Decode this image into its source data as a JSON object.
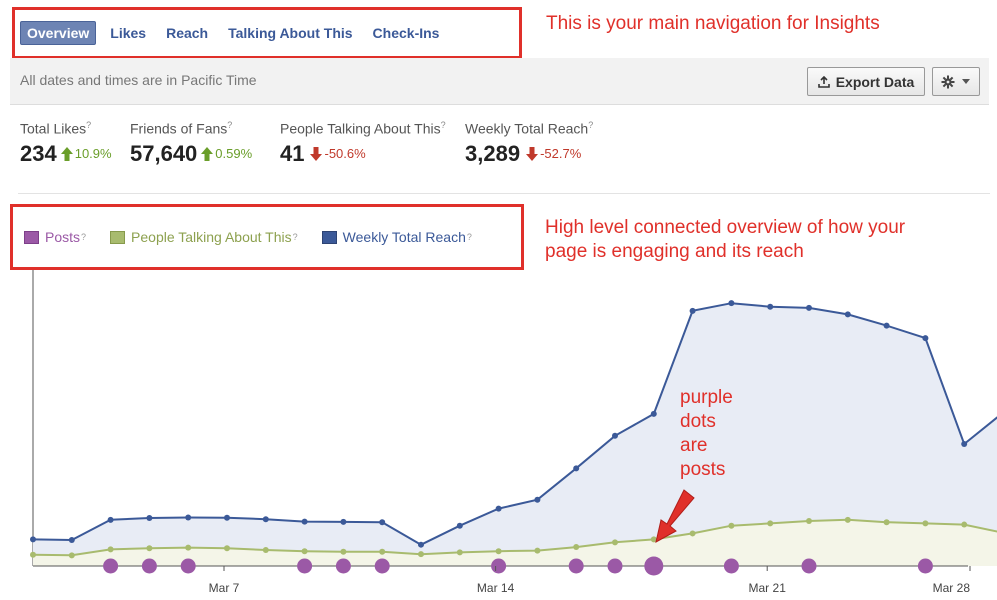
{
  "nav": {
    "tabs": [
      {
        "label": "Overview",
        "active": true
      },
      {
        "label": "Likes",
        "active": false
      },
      {
        "label": "Reach",
        "active": false
      },
      {
        "label": "Talking About This",
        "active": false
      },
      {
        "label": "Check-Ins",
        "active": false
      }
    ]
  },
  "annotations": {
    "nav_note": "This is your main navigation for Insights",
    "legend_note_line1": "High level connected overview of how your",
    "legend_note_line2": "page is engaging and its reach",
    "posts_note": [
      "purple",
      "dots",
      "are",
      "posts"
    ]
  },
  "infobar": {
    "timezone": "All dates and times are in Pacific Time",
    "export_label": "Export Data"
  },
  "stats": [
    {
      "label": "Total Likes",
      "value": "234",
      "change": "10.9%",
      "direction": "up"
    },
    {
      "label": "Friends of Fans",
      "value": "57,640",
      "change": "0.59%",
      "direction": "up"
    },
    {
      "label": "People Talking About This",
      "value": "41",
      "change": "-50.6%",
      "direction": "down"
    },
    {
      "label": "Weekly Total Reach",
      "value": "3,289",
      "change": "-52.7%",
      "direction": "down"
    }
  ],
  "legend": [
    {
      "label": "Posts",
      "color": "#9b59a6",
      "text_color": "#9b59a6"
    },
    {
      "label": "People Talking About This",
      "color": "#a8bb6e",
      "text_color": "#8da14f"
    },
    {
      "label": "Weekly Total Reach",
      "color": "#3b5998",
      "text_color": "#3b5998"
    }
  ],
  "colors": {
    "accent_red": "#e0302a",
    "reach_line": "#3b5998",
    "reach_fill": "#e8ecf5",
    "talking_line": "#a8bb6e",
    "talking_fill": "#f4f5e8",
    "posts": "#9b59a6"
  },
  "chart_data": {
    "type": "line",
    "x_ticks": [
      "Mar 7",
      "Mar 14",
      "Mar 21",
      "Mar 28"
    ],
    "x_tick_day_index": [
      5,
      12,
      19,
      26
    ],
    "day_count": 25,
    "series": [
      {
        "name": "Weekly Total Reach",
        "values": [
          450,
          440,
          780,
          810,
          820,
          815,
          790,
          750,
          745,
          740,
          360,
          680,
          970,
          1120,
          1650,
          2200,
          2570,
          4310,
          4440,
          4380,
          4360,
          4250,
          4060,
          3850,
          2060,
          2590
        ]
      },
      {
        "name": "People Talking About This",
        "values": [
          190,
          180,
          280,
          300,
          310,
          300,
          270,
          250,
          240,
          240,
          200,
          230,
          250,
          260,
          320,
          400,
          450,
          550,
          680,
          720,
          760,
          780,
          740,
          720,
          700,
          560
        ]
      }
    ],
    "posts": [
      {
        "day": 2,
        "size": 1
      },
      {
        "day": 3,
        "size": 1
      },
      {
        "day": 4,
        "size": 1
      },
      {
        "day": 7,
        "size": 1
      },
      {
        "day": 8,
        "size": 1
      },
      {
        "day": 9,
        "size": 1
      },
      {
        "day": 12,
        "size": 1
      },
      {
        "day": 14,
        "size": 1
      },
      {
        "day": 15,
        "size": 1
      },
      {
        "day": 16,
        "size": 2
      },
      {
        "day": 18,
        "size": 1
      },
      {
        "day": 20,
        "size": 1
      },
      {
        "day": 23,
        "size": 1
      }
    ],
    "ylim": [
      0,
      5000
    ],
    "grid": false
  }
}
